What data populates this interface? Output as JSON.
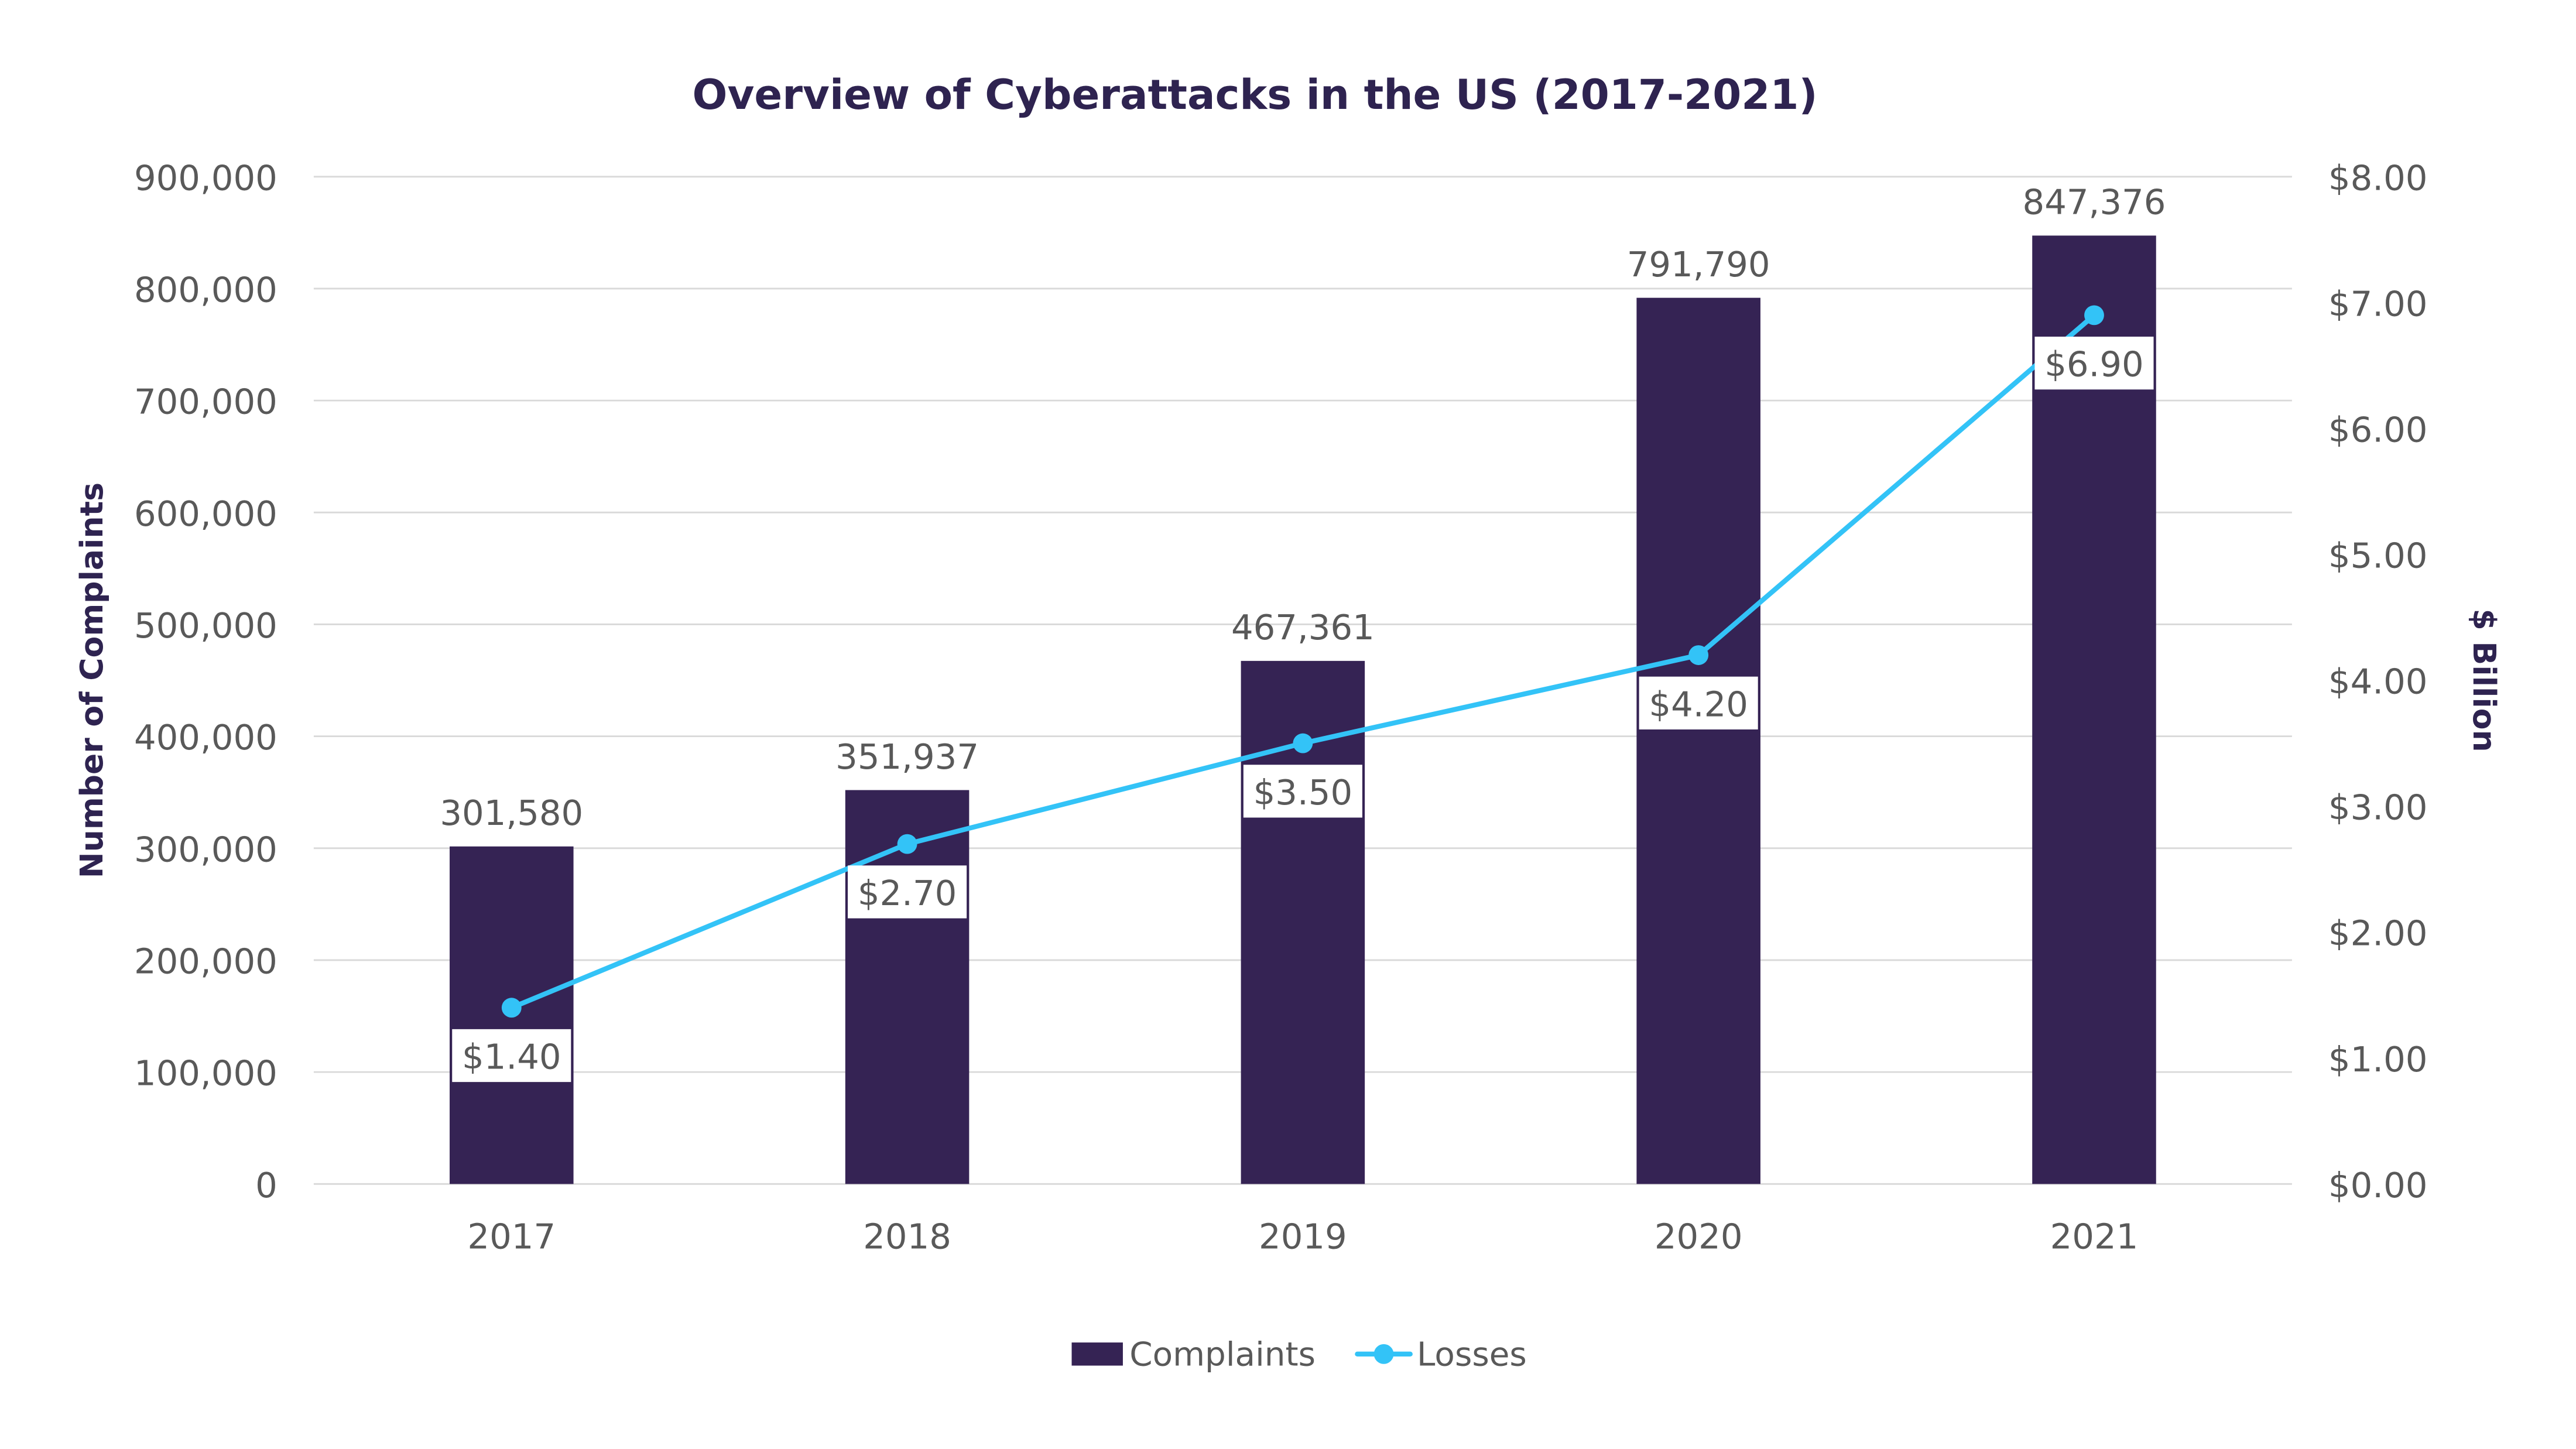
{
  "chart_data": {
    "type": "bar+line",
    "title": "Overview of Cyberattacks in the US (2017-2021)",
    "categories": [
      "2017",
      "2018",
      "2019",
      "2020",
      "2021"
    ],
    "series": [
      {
        "name": "Complaints",
        "type": "bar",
        "axis": "left",
        "color": "#352354",
        "values": [
          301580,
          351937,
          467361,
          791790,
          847376
        ],
        "labels": [
          "301,580",
          "351,937",
          "467,361",
          "791,790",
          "847,376"
        ]
      },
      {
        "name": "Losses",
        "type": "line",
        "axis": "right",
        "color": "#33c3f7",
        "values": [
          1.4,
          2.7,
          3.5,
          4.2,
          6.9
        ],
        "labels": [
          "$1.40",
          "$2.70",
          "$3.50",
          "$4.20",
          "$6.90"
        ]
      }
    ],
    "ylabel": "Number of Complaints",
    "y2label": "$ Billion",
    "ylim": [
      0,
      900000
    ],
    "y2lim": [
      0,
      8
    ],
    "yticks": [
      "0",
      "100,000",
      "200,000",
      "300,000",
      "400,000",
      "500,000",
      "600,000",
      "700,000",
      "800,000",
      "900,000"
    ],
    "y2ticks": [
      "$0.00",
      "$1.00",
      "$2.00",
      "$3.00",
      "$4.00",
      "$5.00",
      "$6.00",
      "$7.00",
      "$8.00"
    ],
    "grid": true,
    "legend": "bottom-center"
  }
}
